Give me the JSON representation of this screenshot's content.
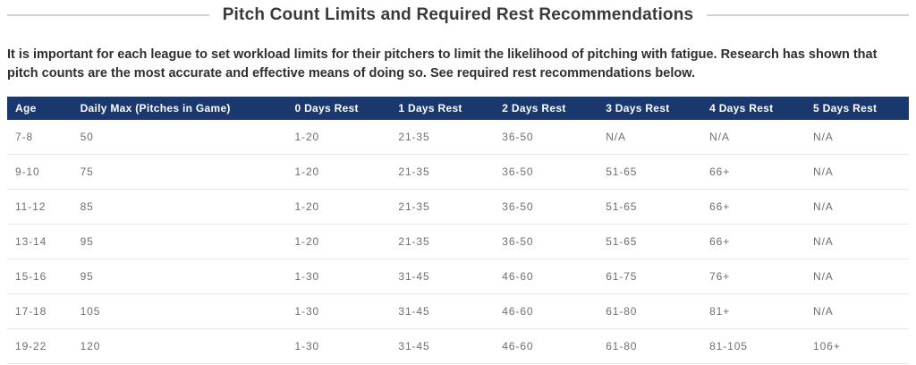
{
  "title": "Pitch Count Limits and Required Rest Recommendations",
  "intro": "It is important for each league to set workload limits for their pitchers to limit the likelihood of pitching with fatigue. Research has shown that pitch counts are the most accurate and effective means of doing so. See required rest recommendations below.",
  "colors": {
    "header_bg": "#1a386e",
    "header_text": "#ffffff",
    "cell_text": "#6e6e6e",
    "row_divider": "#e6e6e6",
    "title_text": "#3a3a3a",
    "title_rule": "#d2d2d2"
  },
  "chart_data": {
    "type": "table",
    "title": "Pitch Count Limits and Required Rest Recommendations",
    "columns": [
      "Age",
      "Daily Max (Pitches in Game)",
      "0 Days Rest",
      "1 Days Rest",
      "2 Days Rest",
      "3 Days Rest",
      "4 Days Rest",
      "5 Days Rest"
    ],
    "rows": [
      [
        "7-8",
        "50",
        "1-20",
        "21-35",
        "36-50",
        "N/A",
        "N/A",
        "N/A"
      ],
      [
        "9-10",
        "75",
        "1-20",
        "21-35",
        "36-50",
        "51-65",
        "66+",
        "N/A"
      ],
      [
        "11-12",
        "85",
        "1-20",
        "21-35",
        "36-50",
        "51-65",
        "66+",
        "N/A"
      ],
      [
        "13-14",
        "95",
        "1-20",
        "21-35",
        "36-50",
        "51-65",
        "66+",
        "N/A"
      ],
      [
        "15-16",
        "95",
        "1-30",
        "31-45",
        "46-60",
        "61-75",
        "76+",
        "N/A"
      ],
      [
        "17-18",
        "105",
        "1-30",
        "31-45",
        "46-60",
        "61-80",
        "81+",
        "N/A"
      ],
      [
        "19-22",
        "120",
        "1-30",
        "31-45",
        "46-60",
        "61-80",
        "81-105",
        "106+"
      ]
    ]
  }
}
